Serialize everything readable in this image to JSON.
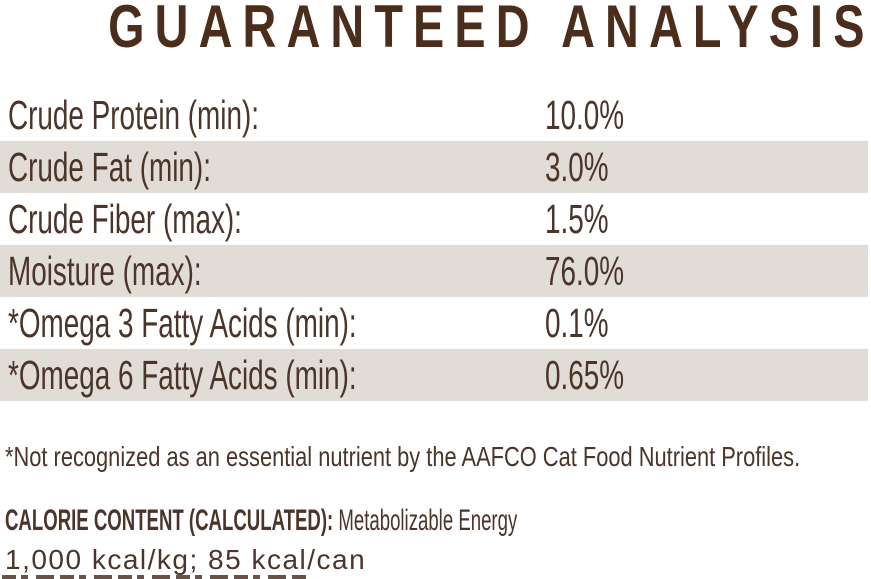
{
  "title": "GUARANTEED ANALYSIS",
  "colors": {
    "title_brown": "#4b2d1b",
    "text_brown": "#4b352b",
    "row_alt_bg": "#e1dcd6",
    "page_bg": "#ffffff"
  },
  "analysis_table": {
    "rows": [
      {
        "label": "Crude Protein (min):",
        "value": "10.0%"
      },
      {
        "label": "Crude Fat (min):",
        "value": "3.0%"
      },
      {
        "label": "Crude Fiber (max):",
        "value": "1.5%"
      },
      {
        "label": "Moisture (max):",
        "value": "76.0%"
      },
      {
        "label": "*Omega 3 Fatty Acids (min):",
        "value": "0.1%"
      },
      {
        "label": "*Omega 6 Fatty Acids (min):",
        "value": "0.65%"
      }
    ]
  },
  "footnote": "*Not recognized as an essential nutrient by the AAFCO Cat Food Nutrient Profiles.",
  "calorie_content": {
    "label": "CALORIE CONTENT (CALCULATED):",
    "description": " Metabolizable Energy",
    "values": "1,000 kcal/kg; 85 kcal/can"
  }
}
